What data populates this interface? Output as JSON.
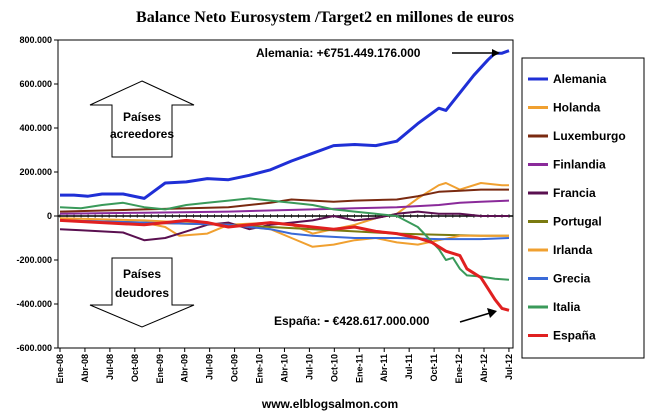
{
  "chart_data": {
    "type": "line",
    "title": "Balance Neto Eurosystem /Target2 en millones de euros",
    "x_ticks": [
      "Ene-08",
      "Abr-08",
      "Jul-08",
      "Oct-08",
      "Ene-09",
      "Abr-09",
      "Jul-09",
      "Oct-09",
      "Ene-10",
      "Abr-10",
      "Jul-10",
      "Oct-10",
      "Ene-11",
      "Abr-11",
      "Jul-11",
      "Oct-11",
      "Ene-12",
      "Abr-12",
      "Jul-12"
    ],
    "y_ticks": [
      "800.000",
      "600.000",
      "400.000",
      "200.000",
      "0",
      "-200.000",
      "-400.000",
      "-600.000"
    ],
    "ylim": [
      -600000,
      800000
    ],
    "grid": false,
    "legend_position": "right",
    "series": [
      {
        "name": "Alemania",
        "color": "#1f2fd6",
        "points": [
          [
            0,
            95000
          ],
          [
            2,
            95000
          ],
          [
            4,
            90000
          ],
          [
            6,
            100000
          ],
          [
            9,
            100000
          ],
          [
            12,
            80000
          ],
          [
            15,
            150000
          ],
          [
            18,
            155000
          ],
          [
            21,
            170000
          ],
          [
            24,
            165000
          ],
          [
            27,
            185000
          ],
          [
            30,
            210000
          ],
          [
            33,
            250000
          ],
          [
            36,
            285000
          ],
          [
            39,
            320000
          ],
          [
            42,
            325000
          ],
          [
            45,
            320000
          ],
          [
            48,
            340000
          ],
          [
            51,
            420000
          ],
          [
            54,
            490000
          ],
          [
            55,
            480000
          ],
          [
            57,
            560000
          ],
          [
            59,
            640000
          ],
          [
            61,
            710000
          ],
          [
            62,
            740000
          ],
          [
            63,
            740000
          ],
          [
            64,
            751449
          ]
        ]
      },
      {
        "name": "Holanda",
        "color": "#f0a030",
        "points": [
          [
            0,
            -20000
          ],
          [
            6,
            -25000
          ],
          [
            12,
            -30000
          ],
          [
            15,
            -50000
          ],
          [
            17,
            -90000
          ],
          [
            21,
            -80000
          ],
          [
            24,
            -40000
          ],
          [
            30,
            -30000
          ],
          [
            33,
            -40000
          ],
          [
            36,
            -80000
          ],
          [
            39,
            -60000
          ],
          [
            42,
            -40000
          ],
          [
            45,
            -10000
          ],
          [
            48,
            10000
          ],
          [
            51,
            80000
          ],
          [
            54,
            140000
          ],
          [
            55,
            150000
          ],
          [
            57,
            120000
          ],
          [
            60,
            150000
          ],
          [
            63,
            140000
          ],
          [
            64,
            140000
          ]
        ]
      },
      {
        "name": "Luxemburgo",
        "color": "#7a2a10",
        "points": [
          [
            0,
            20000
          ],
          [
            12,
            30000
          ],
          [
            24,
            40000
          ],
          [
            30,
            60000
          ],
          [
            33,
            75000
          ],
          [
            36,
            70000
          ],
          [
            39,
            65000
          ],
          [
            42,
            70000
          ],
          [
            48,
            75000
          ],
          [
            51,
            90000
          ],
          [
            54,
            110000
          ],
          [
            57,
            115000
          ],
          [
            60,
            120000
          ],
          [
            64,
            120000
          ]
        ]
      },
      {
        "name": "Finlandia",
        "color": "#8a2a9a",
        "points": [
          [
            0,
            10000
          ],
          [
            12,
            15000
          ],
          [
            24,
            20000
          ],
          [
            36,
            30000
          ],
          [
            42,
            35000
          ],
          [
            48,
            40000
          ],
          [
            51,
            45000
          ],
          [
            54,
            50000
          ],
          [
            57,
            60000
          ],
          [
            60,
            65000
          ],
          [
            64,
            70000
          ]
        ]
      },
      {
        "name": "Francia",
        "color": "#5a1050",
        "points": [
          [
            0,
            -60000
          ],
          [
            3,
            -65000
          ],
          [
            6,
            -70000
          ],
          [
            9,
            -75000
          ],
          [
            12,
            -110000
          ],
          [
            15,
            -100000
          ],
          [
            18,
            -70000
          ],
          [
            21,
            -40000
          ],
          [
            24,
            -30000
          ],
          [
            27,
            -60000
          ],
          [
            30,
            -40000
          ],
          [
            33,
            -30000
          ],
          [
            36,
            -20000
          ],
          [
            39,
            0
          ],
          [
            42,
            -20000
          ],
          [
            45,
            -10000
          ],
          [
            48,
            10000
          ],
          [
            51,
            20000
          ],
          [
            54,
            10000
          ],
          [
            57,
            10000
          ],
          [
            60,
            0
          ],
          [
            64,
            0
          ]
        ]
      },
      {
        "name": "Portugal",
        "color": "#7a7a10",
        "points": [
          [
            0,
            -20000
          ],
          [
            12,
            -30000
          ],
          [
            24,
            -40000
          ],
          [
            30,
            -50000
          ],
          [
            36,
            -60000
          ],
          [
            42,
            -70000
          ],
          [
            48,
            -80000
          ],
          [
            54,
            -85000
          ],
          [
            60,
            -90000
          ],
          [
            64,
            -90000
          ]
        ]
      },
      {
        "name": "Irlanda",
        "color": "#f0a030",
        "points": [
          [
            0,
            -10000
          ],
          [
            12,
            -20000
          ],
          [
            24,
            -40000
          ],
          [
            30,
            -60000
          ],
          [
            33,
            -100000
          ],
          [
            36,
            -140000
          ],
          [
            39,
            -130000
          ],
          [
            42,
            -110000
          ],
          [
            45,
            -100000
          ],
          [
            48,
            -120000
          ],
          [
            51,
            -130000
          ],
          [
            54,
            -110000
          ],
          [
            57,
            -90000
          ],
          [
            60,
            -90000
          ],
          [
            64,
            -90000
          ]
        ]
      },
      {
        "name": "Grecia",
        "color": "#3a6ad8",
        "points": [
          [
            0,
            -20000
          ],
          [
            12,
            -30000
          ],
          [
            24,
            -40000
          ],
          [
            30,
            -60000
          ],
          [
            33,
            -80000
          ],
          [
            36,
            -90000
          ],
          [
            42,
            -100000
          ],
          [
            48,
            -100000
          ],
          [
            54,
            -105000
          ],
          [
            60,
            -105000
          ],
          [
            64,
            -100000
          ]
        ]
      },
      {
        "name": "Italia",
        "color": "#3a9a5a",
        "points": [
          [
            0,
            40000
          ],
          [
            3,
            35000
          ],
          [
            6,
            50000
          ],
          [
            9,
            60000
          ],
          [
            12,
            40000
          ],
          [
            15,
            30000
          ],
          [
            18,
            50000
          ],
          [
            21,
            60000
          ],
          [
            24,
            70000
          ],
          [
            27,
            80000
          ],
          [
            30,
            70000
          ],
          [
            33,
            60000
          ],
          [
            36,
            50000
          ],
          [
            39,
            30000
          ],
          [
            42,
            20000
          ],
          [
            45,
            10000
          ],
          [
            48,
            0
          ],
          [
            51,
            -50000
          ],
          [
            54,
            -150000
          ],
          [
            55,
            -200000
          ],
          [
            56,
            -190000
          ],
          [
            57,
            -240000
          ],
          [
            58,
            -270000
          ],
          [
            60,
            -275000
          ],
          [
            62,
            -285000
          ],
          [
            64,
            -290000
          ]
        ]
      },
      {
        "name": "España",
        "color": "#e02020",
        "points": [
          [
            0,
            -20000
          ],
          [
            3,
            -25000
          ],
          [
            6,
            -30000
          ],
          [
            9,
            -35000
          ],
          [
            12,
            -40000
          ],
          [
            15,
            -30000
          ],
          [
            18,
            -20000
          ],
          [
            21,
            -30000
          ],
          [
            24,
            -50000
          ],
          [
            27,
            -40000
          ],
          [
            30,
            -30000
          ],
          [
            33,
            -40000
          ],
          [
            36,
            -50000
          ],
          [
            39,
            -60000
          ],
          [
            42,
            -50000
          ],
          [
            45,
            -70000
          ],
          [
            48,
            -80000
          ],
          [
            51,
            -100000
          ],
          [
            53,
            -120000
          ],
          [
            54,
            -140000
          ],
          [
            55,
            -160000
          ],
          [
            57,
            -180000
          ],
          [
            58,
            -240000
          ],
          [
            59,
            -260000
          ],
          [
            60,
            -280000
          ],
          [
            61,
            -330000
          ],
          [
            62,
            -380000
          ],
          [
            63,
            -420000
          ],
          [
            64,
            -428617
          ]
        ]
      }
    ],
    "annotations": {
      "germany": "Alemania: +€751.449.176.000",
      "spain_prefix": "España:",
      "spain_sign": "-",
      "spain_value": "€428.617.000.000",
      "creditors": [
        "Países",
        "acreedores"
      ],
      "debtors": [
        "Países",
        "deudores"
      ]
    }
  },
  "footer": "www.elblogsalmon.com"
}
